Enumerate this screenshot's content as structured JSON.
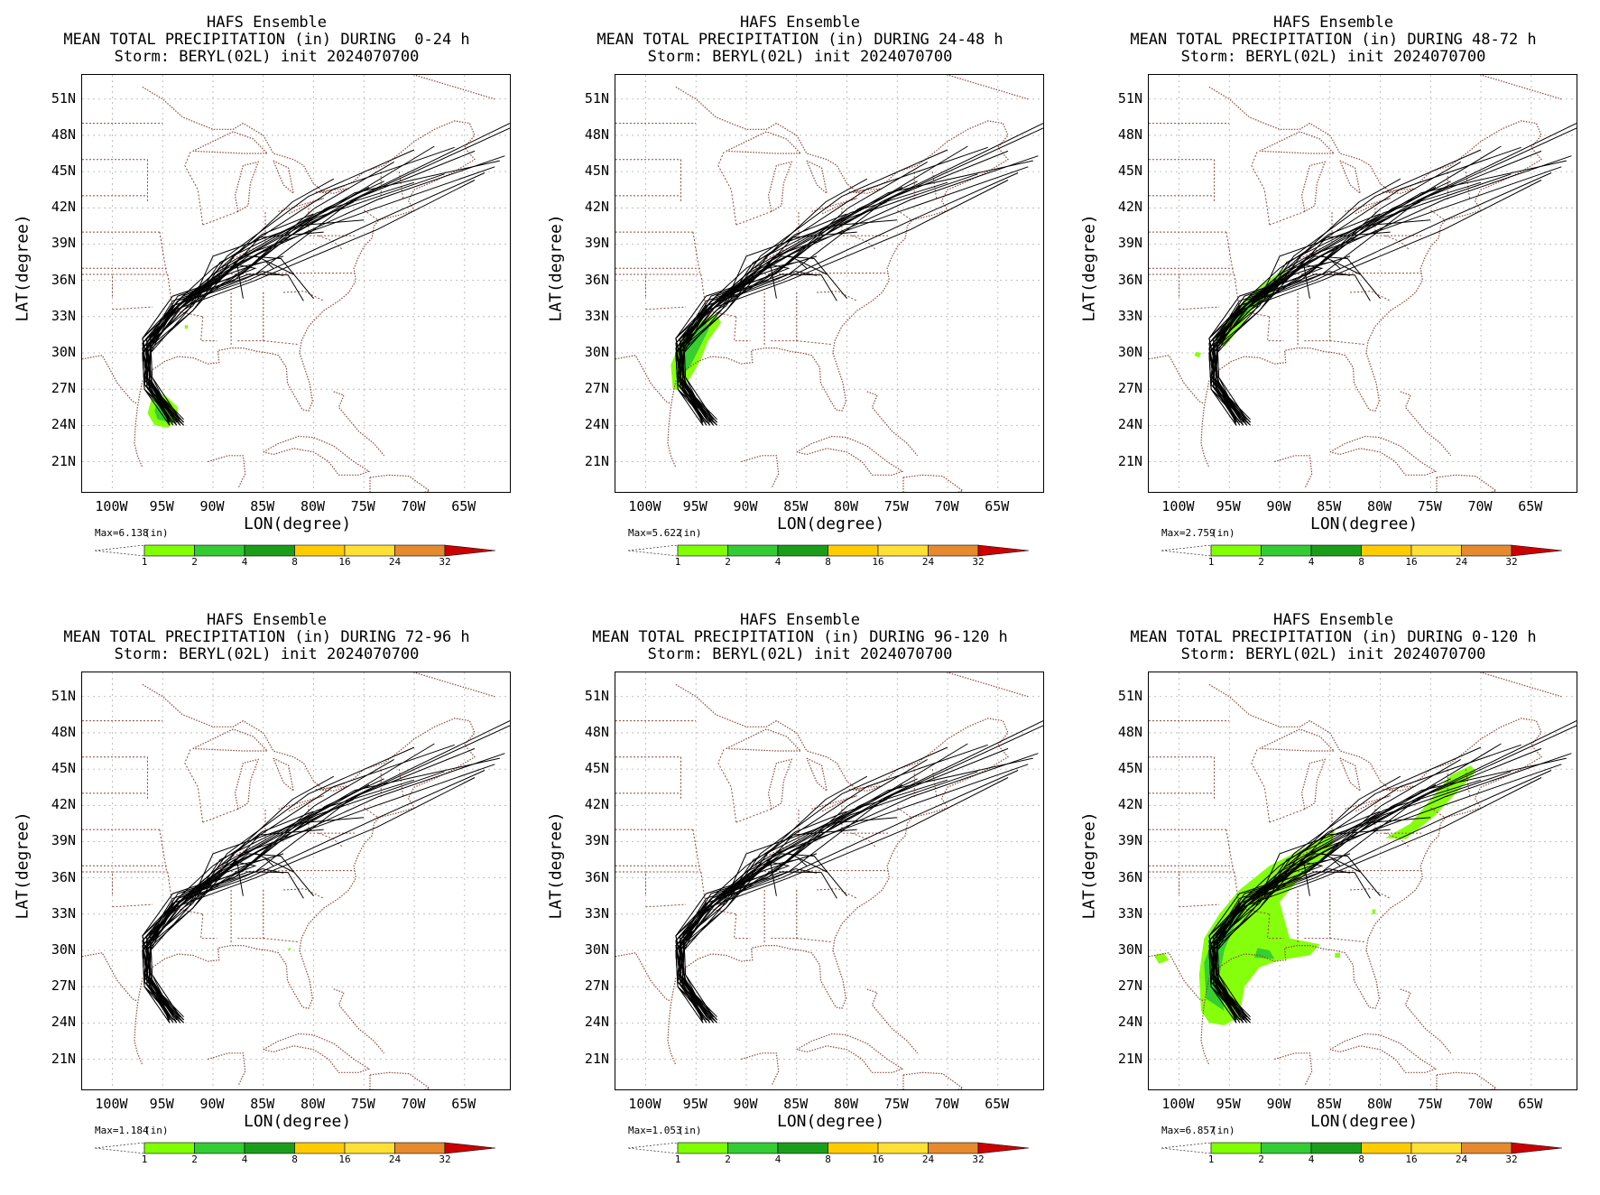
{
  "common": {
    "lat_ticks": [
      "51N",
      "48N",
      "45N",
      "42N",
      "39N",
      "36N",
      "33N",
      "30N",
      "27N",
      "24N",
      "21N"
    ],
    "lon_ticks": [
      "100W",
      "95W",
      "90W",
      "85W",
      "80W",
      "75W",
      "70W",
      "65W"
    ],
    "ylabel": "LAT(degree)",
    "xlabel": "LON(degree)",
    "units": "(in)",
    "colorbar": {
      "levels": [
        "1",
        "2",
        "4",
        "8",
        "16",
        "24",
        "32"
      ],
      "colors": [
        "#7fff00",
        "#33cc33",
        "#1a9e1a",
        "#ffcc00",
        "#ffe033",
        "#e68a2e",
        "#cc0000"
      ]
    },
    "colors": {
      "coast": "#8b4a3c",
      "track": "#000000",
      "grid": "#b0b0b0"
    }
  },
  "panels": [
    {
      "line1": "HAFS Ensemble",
      "line2": "MEAN TOTAL PRECIPITATION (in) DURING  0-24 h",
      "line3": "Storm: BERYL(02L) init 2024070700",
      "max": "Max=6.138",
      "rain": "p0"
    },
    {
      "line1": "HAFS Ensemble",
      "line2": "MEAN TOTAL PRECIPITATION (in) DURING 24-48 h",
      "line3": "Storm: BERYL(02L) init 2024070700",
      "max": "Max=5.622",
      "rain": "p1"
    },
    {
      "line1": "HAFS Ensemble",
      "line2": "MEAN TOTAL PRECIPITATION (in) DURING 48-72 h",
      "line3": "Storm: BERYL(02L) init 2024070700",
      "max": "Max=2.759",
      "rain": "p2"
    },
    {
      "line1": "HAFS Ensemble",
      "line2": "MEAN TOTAL PRECIPITATION (in) DURING 72-96 h",
      "line3": "Storm: BERYL(02L) init 2024070700",
      "max": "Max=1.184",
      "rain": "p3"
    },
    {
      "line1": "HAFS Ensemble",
      "line2": "MEAN TOTAL PRECIPITATION (in) DURING 96-120 h",
      "line3": "Storm: BERYL(02L) init 2024070700",
      "max": "Max=1.053",
      "rain": "p4"
    },
    {
      "line1": "HAFS Ensemble",
      "line2": "MEAN TOTAL PRECIPITATION (in) DURING 0-120 h",
      "line3": "Storm: BERYL(02L) init 2024070700",
      "max": "Max=6.857",
      "rain": "p5"
    }
  ]
}
